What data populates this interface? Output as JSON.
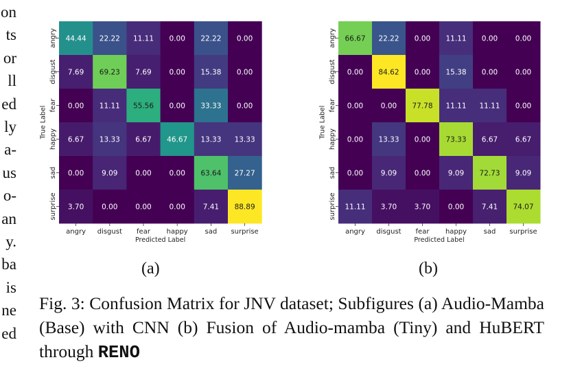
{
  "left_fragments": [
    "on",
    "ts",
    "or",
    "ll",
    "ed",
    "ly",
    "a-",
    "us",
    "o-",
    "an",
    "y.",
    "ba",
    "is",
    "ne",
    "ed"
  ],
  "subfigure_labels": [
    "(a)",
    "(b)"
  ],
  "caption": {
    "text": "Fig. 3: Confusion Matrix for JNV dataset; Subfigures (a) Audio-Mamba (Base) with CNN (b) Fusion of Audio-mamba (Tiny) and HuBERT through ",
    "bold": "RENO"
  },
  "chart_data": [
    {
      "type": "heatmap",
      "title": "",
      "xlabel": "Predicted Label",
      "ylabel": "True Label",
      "x_categories": [
        "angry",
        "disgust",
        "fear",
        "happy",
        "sad",
        "surprise"
      ],
      "y_categories": [
        "angry",
        "disgust",
        "fear",
        "happy",
        "sad",
        "surprise"
      ],
      "colormap": "viridis",
      "value_range": [
        0,
        88.89
      ],
      "values": [
        [
          44.44,
          22.22,
          11.11,
          0.0,
          22.22,
          0.0
        ],
        [
          7.69,
          69.23,
          7.69,
          0.0,
          15.38,
          0.0
        ],
        [
          0.0,
          11.11,
          55.56,
          0.0,
          33.33,
          0.0
        ],
        [
          6.67,
          13.33,
          6.67,
          46.67,
          13.33,
          13.33
        ],
        [
          0.0,
          9.09,
          0.0,
          0.0,
          63.64,
          27.27
        ],
        [
          3.7,
          0.0,
          0.0,
          0.0,
          7.41,
          88.89
        ]
      ]
    },
    {
      "type": "heatmap",
      "title": "",
      "xlabel": "Predicted Label",
      "ylabel": "True Label",
      "x_categories": [
        "angry",
        "disgust",
        "fear",
        "happy",
        "sad",
        "surprise"
      ],
      "y_categories": [
        "angry",
        "disgust",
        "fear",
        "happy",
        "sad",
        "surprise"
      ],
      "colormap": "viridis",
      "value_range": [
        0,
        84.62
      ],
      "values": [
        [
          66.67,
          22.22,
          0.0,
          11.11,
          0.0,
          0.0
        ],
        [
          0.0,
          84.62,
          0.0,
          15.38,
          0.0,
          0.0
        ],
        [
          0.0,
          0.0,
          77.78,
          11.11,
          11.11,
          0.0
        ],
        [
          0.0,
          13.33,
          0.0,
          73.33,
          6.67,
          6.67
        ],
        [
          0.0,
          9.09,
          0.0,
          9.09,
          72.73,
          9.09
        ],
        [
          11.11,
          3.7,
          3.7,
          0.0,
          7.41,
          74.07
        ]
      ]
    }
  ]
}
